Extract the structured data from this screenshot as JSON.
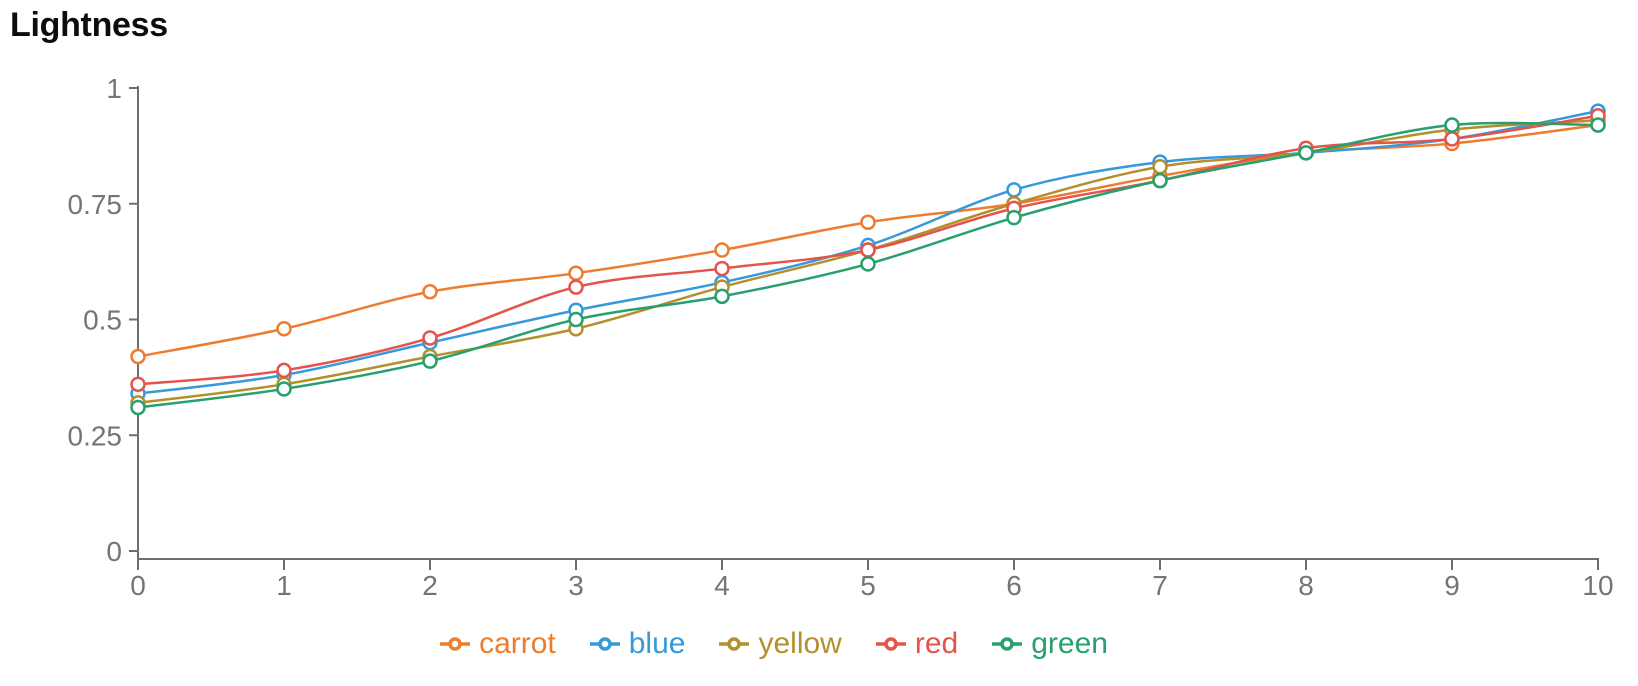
{
  "title": "Lightness",
  "chart_data": {
    "type": "line",
    "title": "Lightness",
    "x": [
      0,
      1,
      2,
      3,
      4,
      5,
      6,
      7,
      8,
      9,
      10
    ],
    "x_tick_labels": [
      "0",
      "1",
      "2",
      "3",
      "4",
      "5",
      "6",
      "7",
      "8",
      "9",
      "10"
    ],
    "y_ticks": [
      0,
      0.25,
      0.5,
      0.75,
      1
    ],
    "y_tick_labels": [
      "0",
      "0.25",
      "0.5",
      "0.75",
      "1"
    ],
    "xlim": [
      0,
      10
    ],
    "ylim": [
      0,
      1
    ],
    "grid": false,
    "legend_position": "bottom",
    "marker": "open-circle",
    "curve": "smooth",
    "axis_line_color": "#6e6e6e",
    "tick_label_color": "#757575",
    "series": [
      {
        "name": "carrot",
        "color": "#ee7c2f",
        "values": [
          0.42,
          0.48,
          0.56,
          0.6,
          0.65,
          0.71,
          0.75,
          0.81,
          0.86,
          0.88,
          0.92
        ]
      },
      {
        "name": "blue",
        "color": "#3599dc",
        "values": [
          0.34,
          0.38,
          0.45,
          0.52,
          0.58,
          0.66,
          0.78,
          0.84,
          0.86,
          0.89,
          0.95
        ]
      },
      {
        "name": "yellow",
        "color": "#b3902c",
        "values": [
          0.32,
          0.36,
          0.42,
          0.48,
          0.57,
          0.65,
          0.75,
          0.83,
          0.86,
          0.91,
          0.93
        ]
      },
      {
        "name": "red",
        "color": "#e4534c",
        "values": [
          0.36,
          0.39,
          0.46,
          0.57,
          0.61,
          0.65,
          0.74,
          0.8,
          0.87,
          0.89,
          0.94
        ]
      },
      {
        "name": "green",
        "color": "#27a06e",
        "values": [
          0.31,
          0.35,
          0.41,
          0.5,
          0.55,
          0.62,
          0.72,
          0.8,
          0.86,
          0.92,
          0.92
        ]
      }
    ]
  }
}
